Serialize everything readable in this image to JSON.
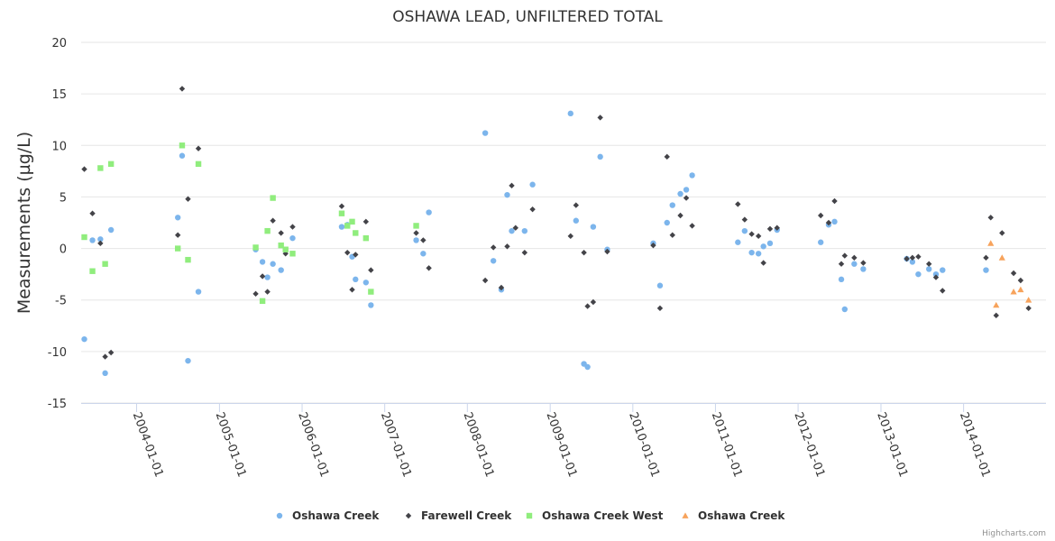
{
  "chart_data": {
    "type": "scatter",
    "title": "OSHAWA LEAD, UNFILTERED TOTAL",
    "ylabel": "Measurements (µg/L)",
    "xlabel": "",
    "ylim": [
      -15,
      20
    ],
    "yticks": [
      -15,
      -10,
      -5,
      0,
      5,
      10,
      15,
      20
    ],
    "xlim": [
      "2003-05-01",
      "2014-12-31"
    ],
    "xticks": [
      "2004-01-01",
      "2005-01-01",
      "2006-01-01",
      "2007-01-01",
      "2008-01-01",
      "2009-01-01",
      "2010-01-01",
      "2011-01-01",
      "2012-01-01",
      "2013-01-01",
      "2014-01-01"
    ],
    "grid": true,
    "legend_position": "bottom",
    "credit": "Highcharts.com",
    "series": [
      {
        "name": "Oshawa Creek",
        "marker": "circle",
        "color": "#7cb5ec",
        "points": [
          [
            "2003-05-15",
            -8.8
          ],
          [
            "2003-06-20",
            0.8
          ],
          [
            "2003-07-25",
            0.9
          ],
          [
            "2003-08-15",
            -12.1
          ],
          [
            "2003-09-10",
            1.8
          ],
          [
            "2004-07-01",
            3.0
          ],
          [
            "2004-07-20",
            9.0
          ],
          [
            "2004-08-15",
            -10.9
          ],
          [
            "2004-09-30",
            -4.2
          ],
          [
            "2005-06-10",
            -0.1
          ],
          [
            "2005-07-10",
            -1.3
          ],
          [
            "2005-08-01",
            -2.8
          ],
          [
            "2005-08-25",
            -1.5
          ],
          [
            "2005-09-30",
            -2.1
          ],
          [
            "2005-11-20",
            1.0
          ],
          [
            "2006-06-25",
            2.1
          ],
          [
            "2006-07-20",
            2.3
          ],
          [
            "2006-08-10",
            -0.8
          ],
          [
            "2006-08-25",
            -3.0
          ],
          [
            "2006-10-10",
            -3.3
          ],
          [
            "2006-11-01",
            -5.5
          ],
          [
            "2007-05-20",
            0.8
          ],
          [
            "2007-06-20",
            -0.5
          ],
          [
            "2007-07-15",
            3.5
          ],
          [
            "2008-03-20",
            11.2
          ],
          [
            "2008-04-25",
            -1.2
          ],
          [
            "2008-05-30",
            -4.0
          ],
          [
            "2008-06-25",
            5.2
          ],
          [
            "2008-07-15",
            1.7
          ],
          [
            "2008-09-10",
            1.7
          ],
          [
            "2008-10-15",
            6.2
          ],
          [
            "2009-04-01",
            13.1
          ],
          [
            "2009-04-25",
            2.7
          ],
          [
            "2009-05-30",
            -11.2
          ],
          [
            "2009-06-15",
            -11.5
          ],
          [
            "2009-07-10",
            2.1
          ],
          [
            "2009-08-10",
            8.9
          ],
          [
            "2009-09-10",
            -0.1
          ],
          [
            "2010-04-01",
            0.5
          ],
          [
            "2010-05-01",
            -3.6
          ],
          [
            "2010-06-01",
            2.5
          ],
          [
            "2010-06-25",
            4.2
          ],
          [
            "2010-07-30",
            5.3
          ],
          [
            "2010-08-25",
            5.7
          ],
          [
            "2010-09-20",
            7.1
          ],
          [
            "2011-04-10",
            0.6
          ],
          [
            "2011-05-10",
            1.7
          ],
          [
            "2011-06-10",
            -0.4
          ],
          [
            "2011-07-10",
            -0.5
          ],
          [
            "2011-08-01",
            0.2
          ],
          [
            "2011-08-30",
            0.5
          ],
          [
            "2011-09-30",
            1.8
          ],
          [
            "2012-04-10",
            0.6
          ],
          [
            "2012-05-15",
            2.3
          ],
          [
            "2012-06-10",
            2.6
          ],
          [
            "2012-07-10",
            -3.0
          ],
          [
            "2012-07-25",
            -5.9
          ],
          [
            "2012-09-05",
            -1.5
          ],
          [
            "2012-10-15",
            -2.0
          ],
          [
            "2013-04-25",
            -1.0
          ],
          [
            "2013-05-20",
            -1.3
          ],
          [
            "2013-06-15",
            -2.5
          ],
          [
            "2013-08-01",
            -2.0
          ],
          [
            "2013-09-01",
            -2.5
          ],
          [
            "2013-09-30",
            -2.1
          ],
          [
            "2014-04-10",
            -2.1
          ]
        ]
      },
      {
        "name": "Farewell Creek",
        "marker": "diamond",
        "color": "#434348",
        "points": [
          [
            "2003-05-15",
            7.7
          ],
          [
            "2003-06-20",
            3.4
          ],
          [
            "2003-07-25",
            0.5
          ],
          [
            "2003-08-15",
            -10.5
          ],
          [
            "2003-09-10",
            -10.1
          ],
          [
            "2004-07-01",
            1.3
          ],
          [
            "2004-07-20",
            15.5
          ],
          [
            "2004-08-15",
            4.8
          ],
          [
            "2004-09-30",
            9.7
          ],
          [
            "2005-06-10",
            -4.4
          ],
          [
            "2005-07-10",
            -2.7
          ],
          [
            "2005-08-01",
            -4.2
          ],
          [
            "2005-08-25",
            2.7
          ],
          [
            "2005-09-30",
            1.5
          ],
          [
            "2005-10-20",
            -0.5
          ],
          [
            "2005-11-20",
            2.1
          ],
          [
            "2006-06-25",
            4.1
          ],
          [
            "2006-07-20",
            -0.4
          ],
          [
            "2006-08-10",
            -4.0
          ],
          [
            "2006-08-25",
            -0.6
          ],
          [
            "2006-10-10",
            2.6
          ],
          [
            "2006-11-01",
            -2.1
          ],
          [
            "2007-05-20",
            1.5
          ],
          [
            "2007-06-20",
            0.8
          ],
          [
            "2007-07-15",
            -1.9
          ],
          [
            "2008-03-20",
            -3.1
          ],
          [
            "2008-04-25",
            0.1
          ],
          [
            "2008-05-30",
            -3.8
          ],
          [
            "2008-06-25",
            0.2
          ],
          [
            "2008-07-15",
            6.1
          ],
          [
            "2008-08-01",
            2.0
          ],
          [
            "2008-09-10",
            -0.4
          ],
          [
            "2008-10-15",
            3.8
          ],
          [
            "2009-04-01",
            1.2
          ],
          [
            "2009-04-25",
            4.2
          ],
          [
            "2009-05-30",
            -0.4
          ],
          [
            "2009-06-15",
            -5.6
          ],
          [
            "2009-07-10",
            -5.2
          ],
          [
            "2009-08-10",
            12.7
          ],
          [
            "2009-09-10",
            -0.3
          ],
          [
            "2010-04-01",
            0.3
          ],
          [
            "2010-05-01",
            -5.8
          ],
          [
            "2010-06-01",
            8.9
          ],
          [
            "2010-06-25",
            1.3
          ],
          [
            "2010-07-30",
            3.2
          ],
          [
            "2010-08-25",
            4.9
          ],
          [
            "2010-09-20",
            2.2
          ],
          [
            "2011-04-10",
            4.3
          ],
          [
            "2011-05-10",
            2.8
          ],
          [
            "2011-06-10",
            1.4
          ],
          [
            "2011-07-10",
            1.2
          ],
          [
            "2011-08-01",
            -1.4
          ],
          [
            "2011-08-30",
            1.9
          ],
          [
            "2011-09-30",
            2.0
          ],
          [
            "2012-04-10",
            3.2
          ],
          [
            "2012-05-15",
            2.5
          ],
          [
            "2012-06-10",
            4.6
          ],
          [
            "2012-07-10",
            -1.5
          ],
          [
            "2012-07-25",
            -0.7
          ],
          [
            "2012-09-05",
            -0.9
          ],
          [
            "2012-10-15",
            -1.4
          ],
          [
            "2013-04-25",
            -1.0
          ],
          [
            "2013-05-20",
            -0.9
          ],
          [
            "2013-06-15",
            -0.8
          ],
          [
            "2013-08-01",
            -1.5
          ],
          [
            "2013-09-01",
            -2.8
          ],
          [
            "2013-09-30",
            -4.1
          ],
          [
            "2014-04-10",
            -0.9
          ],
          [
            "2014-05-01",
            3.0
          ],
          [
            "2014-05-25",
            -6.5
          ],
          [
            "2014-06-20",
            1.5
          ],
          [
            "2014-08-10",
            -2.4
          ],
          [
            "2014-09-10",
            -3.1
          ],
          [
            "2014-10-15",
            -5.8
          ]
        ]
      },
      {
        "name": "Oshawa Creek West",
        "marker": "square",
        "color": "#90ed7d",
        "points": [
          [
            "2003-05-15",
            1.1
          ],
          [
            "2003-06-20",
            -2.2
          ],
          [
            "2003-07-25",
            7.8
          ],
          [
            "2003-08-15",
            -1.5
          ],
          [
            "2003-09-10",
            8.2
          ],
          [
            "2004-07-01",
            0.0
          ],
          [
            "2004-07-20",
            10.0
          ],
          [
            "2004-08-15",
            -1.1
          ],
          [
            "2004-09-30",
            8.2
          ],
          [
            "2005-06-10",
            0.1
          ],
          [
            "2005-07-10",
            -5.1
          ],
          [
            "2005-08-01",
            1.7
          ],
          [
            "2005-08-25",
            4.9
          ],
          [
            "2005-09-30",
            0.3
          ],
          [
            "2005-10-20",
            -0.1
          ],
          [
            "2005-11-20",
            -0.5
          ],
          [
            "2006-06-25",
            3.4
          ],
          [
            "2006-07-20",
            2.2
          ],
          [
            "2006-08-10",
            2.6
          ],
          [
            "2006-08-25",
            1.5
          ],
          [
            "2006-10-10",
            1.0
          ],
          [
            "2006-11-01",
            -4.2
          ],
          [
            "2007-05-20",
            2.2
          ]
        ]
      },
      {
        "name": "Oshawa Creek",
        "marker": "triangle",
        "color": "#f7a35c",
        "points": [
          [
            "2014-05-01",
            0.5
          ],
          [
            "2014-05-25",
            -5.5
          ],
          [
            "2014-06-20",
            -0.9
          ],
          [
            "2014-08-10",
            -4.2
          ],
          [
            "2014-09-10",
            -4.0
          ],
          [
            "2014-10-15",
            -5.0
          ]
        ]
      }
    ]
  }
}
